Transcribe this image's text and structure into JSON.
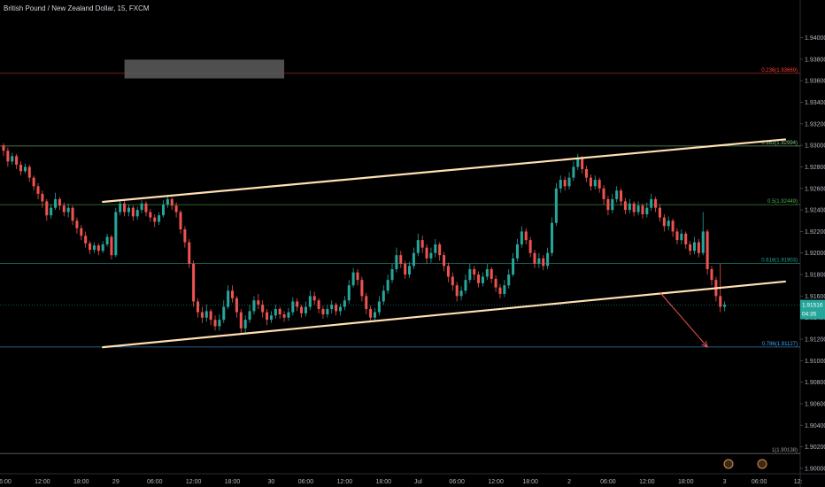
{
  "header": {
    "title": "British Pound / New Zealand Dollar, 15, FXCM"
  },
  "chart_data": {
    "type": "candlestick",
    "y_range": [
      1.8995,
      1.9435
    ],
    "y_ticks": [
      1.94,
      1.938,
      1.936,
      1.934,
      1.932,
      1.93,
      1.928,
      1.926,
      1.924,
      1.922,
      1.92,
      1.918,
      1.916,
      1.914,
      1.912,
      1.91,
      1.908,
      1.906,
      1.904,
      1.902,
      1.9
    ],
    "y_tick_labels": [
      "1.94000",
      "1.93800",
      "1.93600",
      "1.93400",
      "1.93200",
      "1.93000",
      "1.92800",
      "1.92600",
      "1.92400",
      "1.92200",
      "1.92000",
      "1.91800",
      "1.91600",
      "1.91400",
      "1.91200",
      "1.91000",
      "1.90800",
      "1.90600",
      "1.90400",
      "1.90200",
      "1.90000"
    ],
    "x_range": [
      0,
      181
    ],
    "x_ticks": [
      {
        "t": 0,
        "label": "06:00"
      },
      {
        "t": 9,
        "label": "12:00"
      },
      {
        "t": 18,
        "label": "18:00"
      },
      {
        "t": 26,
        "label": "29"
      },
      {
        "t": 35,
        "label": "06:00"
      },
      {
        "t": 44,
        "label": "12:00"
      },
      {
        "t": 53,
        "label": "18:00"
      },
      {
        "t": 62,
        "label": "30"
      },
      {
        "t": 70,
        "label": "06:00"
      },
      {
        "t": 79,
        "label": "12:00"
      },
      {
        "t": 88,
        "label": "18:00"
      },
      {
        "t": 96,
        "label": "Jul"
      },
      {
        "t": 105,
        "label": "06:00"
      },
      {
        "t": 114,
        "label": "12:00"
      },
      {
        "t": 122,
        "label": "18:00"
      },
      {
        "t": 131,
        "label": "2"
      },
      {
        "t": 140,
        "label": "06:00"
      },
      {
        "t": 149,
        "label": "12:00"
      },
      {
        "t": 158,
        "label": "18:00"
      },
      {
        "t": 167,
        "label": "3"
      },
      {
        "t": 175,
        "label": "06:00"
      },
      {
        "t": 184,
        "label": "12:"
      }
    ],
    "colors": {
      "up": "#26a69a",
      "down": "#ef5350",
      "channel": "#ffe0b2",
      "grid_fib": "#2e7d5b",
      "fib_top": "#c62828",
      "fib_786": "#1e6f8f",
      "price_tag": "#26a69a",
      "arrow": "#ef5350",
      "zone": "#5d5d5d"
    },
    "fib_levels": [
      {
        "ratio": "0.236",
        "label": "0.236(1.93669)",
        "price": 1.93669,
        "color": "#f44336"
      },
      {
        "ratio": "0.382",
        "label": "0.382(1.92994)",
        "price": 1.92994,
        "color": "#81c784"
      },
      {
        "ratio": "0.5",
        "label": "0.5(1.92449)",
        "price": 1.92449,
        "color": "#4caf50"
      },
      {
        "ratio": "0.618",
        "label": "0.618(1.91903)",
        "price": 1.91903,
        "color": "#26a69a"
      },
      {
        "ratio": "0.786",
        "label": "0.786(1.91127)",
        "price": 1.91127,
        "color": "#42a5f5"
      },
      {
        "ratio": "1",
        "label": "1(1.90138)",
        "price": 1.90138,
        "color": "#9e9e9e"
      }
    ],
    "last_price": {
      "price": 1.91516,
      "label": "1.91516",
      "countdown": "04:35"
    },
    "channel_upper": [
      {
        "t": 23,
        "price": 1.92475
      },
      {
        "t": 181,
        "price": 1.93055
      }
    ],
    "channel_lower": [
      {
        "t": 23,
        "price": 1.91125
      },
      {
        "t": 181,
        "price": 1.91735
      }
    ],
    "zone": {
      "t1": 28,
      "t2": 65,
      "p1": 1.93796,
      "p2": 1.93622
    },
    "arrow": {
      "from_t": 152,
      "from_p": 1.91635,
      "to_t": 163,
      "to_p": 1.91127
    },
    "candles": [
      [
        1.93,
        1.9295,
        1.9302,
        1.929
      ],
      [
        1.9295,
        1.9285,
        1.9298,
        1.928
      ],
      [
        1.9285,
        1.929,
        1.9293,
        1.9282
      ],
      [
        1.929,
        1.9282,
        1.9292,
        1.9278
      ],
      [
        1.9282,
        1.9276,
        1.9285,
        1.9272
      ],
      [
        1.9276,
        1.928,
        1.9283,
        1.9274
      ],
      [
        1.928,
        1.927,
        1.9282,
        1.9266
      ],
      [
        1.927,
        1.9262,
        1.9272,
        1.9258
      ],
      [
        1.9262,
        1.9255,
        1.9265,
        1.925
      ],
      [
        1.9255,
        1.9248,
        1.9258,
        1.9242
      ],
      [
        1.9248,
        1.9235,
        1.925,
        1.923
      ],
      [
        1.9235,
        1.9242,
        1.9245,
        1.9232
      ],
      [
        1.9242,
        1.925,
        1.9256,
        1.924
      ],
      [
        1.925,
        1.9244,
        1.9252,
        1.924
      ],
      [
        1.9244,
        1.9238,
        1.9247,
        1.9234
      ],
      [
        1.9238,
        1.9242,
        1.9246,
        1.9233
      ],
      [
        1.9242,
        1.923,
        1.9244,
        1.9226
      ],
      [
        1.923,
        1.9223,
        1.9233,
        1.9218
      ],
      [
        1.9223,
        1.9216,
        1.9226,
        1.9212
      ],
      [
        1.9216,
        1.9209,
        1.922,
        1.9205
      ],
      [
        1.9209,
        1.9203,
        1.9211,
        1.9199
      ],
      [
        1.9203,
        1.9207,
        1.921,
        1.92
      ],
      [
        1.9207,
        1.9202,
        1.9209,
        1.9198
      ],
      [
        1.9202,
        1.9208,
        1.9211,
        1.92
      ],
      [
        1.9208,
        1.9215,
        1.9218,
        1.9206
      ],
      [
        1.9215,
        1.9198,
        1.9217,
        1.9194
      ],
      [
        1.9198,
        1.9238,
        1.9242,
        1.9196
      ],
      [
        1.9238,
        1.9246,
        1.925,
        1.9235
      ],
      [
        1.9246,
        1.9238,
        1.9249,
        1.9234
      ],
      [
        1.9238,
        1.9242,
        1.9245,
        1.9234
      ],
      [
        1.9242,
        1.9234,
        1.9244,
        1.923
      ],
      [
        1.9234,
        1.924,
        1.9243,
        1.9231
      ],
      [
        1.924,
        1.9246,
        1.9249,
        1.9237
      ],
      [
        1.9246,
        1.9238,
        1.9248,
        1.9234
      ],
      [
        1.9238,
        1.9233,
        1.9241,
        1.9229
      ],
      [
        1.9233,
        1.9229,
        1.9236,
        1.9224
      ],
      [
        1.9229,
        1.9235,
        1.9238,
        1.9226
      ],
      [
        1.9235,
        1.9245,
        1.9249,
        1.9233
      ],
      [
        1.9245,
        1.925,
        1.9254,
        1.9242
      ],
      [
        1.925,
        1.9244,
        1.9252,
        1.924
      ],
      [
        1.9244,
        1.9238,
        1.9247,
        1.9233
      ],
      [
        1.9238,
        1.9222,
        1.924,
        1.9218
      ],
      [
        1.9222,
        1.921,
        1.9225,
        1.9205
      ],
      [
        1.921,
        1.919,
        1.9213,
        1.9186
      ],
      [
        1.919,
        1.9155,
        1.9193,
        1.915
      ],
      [
        1.9155,
        1.9145,
        1.9158,
        1.914
      ],
      [
        1.9145,
        1.914,
        1.915,
        1.9135
      ],
      [
        1.914,
        1.9146,
        1.9152,
        1.9136
      ],
      [
        1.9146,
        1.9138,
        1.9148,
        1.9133
      ],
      [
        1.9138,
        1.9132,
        1.9142,
        1.9128
      ],
      [
        1.9132,
        1.9138,
        1.9143,
        1.9128
      ],
      [
        1.9138,
        1.915,
        1.9156,
        1.9135
      ],
      [
        1.915,
        1.9165,
        1.917,
        1.9148
      ],
      [
        1.9165,
        1.9158,
        1.917,
        1.9154
      ],
      [
        1.9158,
        1.9145,
        1.916,
        1.914
      ],
      [
        1.9145,
        1.913,
        1.9148,
        1.9125
      ],
      [
        1.913,
        1.9138,
        1.9142,
        1.9126
      ],
      [
        1.9138,
        1.9146,
        1.9152,
        1.9135
      ],
      [
        1.9146,
        1.9156,
        1.916,
        1.9143
      ],
      [
        1.9156,
        1.9152,
        1.9162,
        1.9148
      ],
      [
        1.9152,
        1.9145,
        1.9156,
        1.914
      ],
      [
        1.9145,
        1.9138,
        1.9148,
        1.9133
      ],
      [
        1.9138,
        1.9142,
        1.9146,
        1.9135
      ],
      [
        1.9142,
        1.9148,
        1.9152,
        1.9139
      ],
      [
        1.9148,
        1.9143,
        1.915,
        1.9139
      ],
      [
        1.9143,
        1.914,
        1.9146,
        1.9136
      ],
      [
        1.914,
        1.9145,
        1.9149,
        1.9137
      ],
      [
        1.9145,
        1.9155,
        1.9159,
        1.9142
      ],
      [
        1.9155,
        1.915,
        1.9158,
        1.9146
      ],
      [
        1.915,
        1.9144,
        1.9152,
        1.914
      ],
      [
        1.9144,
        1.915,
        1.9155,
        1.9141
      ],
      [
        1.915,
        1.916,
        1.9165,
        1.9147
      ],
      [
        1.916,
        1.9156,
        1.9164,
        1.9152
      ],
      [
        1.9156,
        1.9148,
        1.9158,
        1.9144
      ],
      [
        1.9148,
        1.9143,
        1.9151,
        1.9139
      ],
      [
        1.9143,
        1.9148,
        1.9152,
        1.914
      ],
      [
        1.9148,
        1.9152,
        1.9156,
        1.9144
      ],
      [
        1.9152,
        1.9146,
        1.9154,
        1.9142
      ],
      [
        1.9146,
        1.915,
        1.9153,
        1.9142
      ],
      [
        1.915,
        1.9156,
        1.916,
        1.9147
      ],
      [
        1.9156,
        1.917,
        1.9175,
        1.9153
      ],
      [
        1.917,
        1.9182,
        1.9186,
        1.9168
      ],
      [
        1.9182,
        1.9175,
        1.9185,
        1.917
      ],
      [
        1.9175,
        1.916,
        1.9178,
        1.9155
      ],
      [
        1.916,
        1.9148,
        1.9163,
        1.9143
      ],
      [
        1.9148,
        1.914,
        1.9151,
        1.9136
      ],
      [
        1.914,
        1.9145,
        1.9149,
        1.9136
      ],
      [
        1.9145,
        1.9155,
        1.916,
        1.9142
      ],
      [
        1.9155,
        1.9165,
        1.917,
        1.9152
      ],
      [
        1.9165,
        1.9175,
        1.918,
        1.9162
      ],
      [
        1.9175,
        1.9185,
        1.919,
        1.9172
      ],
      [
        1.9185,
        1.9198,
        1.9205,
        1.9182
      ],
      [
        1.9198,
        1.919,
        1.9202,
        1.9186
      ],
      [
        1.919,
        1.918,
        1.9193,
        1.9176
      ],
      [
        1.918,
        1.9188,
        1.9192,
        1.9177
      ],
      [
        1.9188,
        1.92,
        1.9205,
        1.9185
      ],
      [
        1.92,
        1.9212,
        1.9218,
        1.9197
      ],
      [
        1.9212,
        1.9205,
        1.9216,
        1.92
      ],
      [
        1.9205,
        1.9195,
        1.9208,
        1.919
      ],
      [
        1.9195,
        1.92,
        1.9205,
        1.9191
      ],
      [
        1.92,
        1.9208,
        1.9213,
        1.9196
      ],
      [
        1.9208,
        1.9198,
        1.921,
        1.9193
      ],
      [
        1.9198,
        1.9188,
        1.9201,
        1.9183
      ],
      [
        1.9188,
        1.9178,
        1.9191,
        1.9173
      ],
      [
        1.9178,
        1.917,
        1.9182,
        1.9165
      ],
      [
        1.917,
        1.916,
        1.9173,
        1.9155
      ],
      [
        1.916,
        1.9165,
        1.9169,
        1.9156
      ],
      [
        1.9165,
        1.9175,
        1.918,
        1.9162
      ],
      [
        1.9175,
        1.9185,
        1.919,
        1.9172
      ],
      [
        1.9185,
        1.918,
        1.9188,
        1.9175
      ],
      [
        1.918,
        1.9172,
        1.9183,
        1.9168
      ],
      [
        1.9172,
        1.9178,
        1.9182,
        1.9169
      ],
      [
        1.9178,
        1.9185,
        1.919,
        1.9175
      ],
      [
        1.9185,
        1.9176,
        1.9187,
        1.9172
      ],
      [
        1.9176,
        1.9168,
        1.9179,
        1.9164
      ],
      [
        1.9168,
        1.9162,
        1.9171,
        1.9158
      ],
      [
        1.9162,
        1.917,
        1.9175,
        1.9159
      ],
      [
        1.917,
        1.918,
        1.9185,
        1.9167
      ],
      [
        1.918,
        1.9195,
        1.92,
        1.9178
      ],
      [
        1.9195,
        1.9208,
        1.9213,
        1.9192
      ],
      [
        1.9208,
        1.922,
        1.9225,
        1.9205
      ],
      [
        1.922,
        1.9212,
        1.9223,
        1.9208
      ],
      [
        1.9212,
        1.92,
        1.9215,
        1.9196
      ],
      [
        1.92,
        1.919,
        1.9203,
        1.9186
      ],
      [
        1.919,
        1.9195,
        1.92,
        1.9186
      ],
      [
        1.9195,
        1.9188,
        1.9198,
        1.9184
      ],
      [
        1.9188,
        1.92,
        1.9205,
        1.9185
      ],
      [
        1.92,
        1.9228,
        1.9233,
        1.9197
      ],
      [
        1.9228,
        1.926,
        1.9265,
        1.9225
      ],
      [
        1.926,
        1.9268,
        1.9272,
        1.9256
      ],
      [
        1.9268,
        1.9262,
        1.9271,
        1.9258
      ],
      [
        1.9262,
        1.927,
        1.9275,
        1.9259
      ],
      [
        1.927,
        1.928,
        1.9285,
        1.9267
      ],
      [
        1.928,
        1.9288,
        1.9292,
        1.9277
      ],
      [
        1.9288,
        1.9278,
        1.929,
        1.9274
      ],
      [
        1.9278,
        1.927,
        1.9281,
        1.9266
      ],
      [
        1.927,
        1.9262,
        1.9273,
        1.9258
      ],
      [
        1.9262,
        1.9268,
        1.9272,
        1.9259
      ],
      [
        1.9268,
        1.926,
        1.927,
        1.9256
      ],
      [
        1.926,
        1.925,
        1.9263,
        1.9245
      ],
      [
        1.925,
        1.924,
        1.9253,
        1.9235
      ],
      [
        1.924,
        1.925,
        1.9255,
        1.9237
      ],
      [
        1.925,
        1.9258,
        1.9262,
        1.9247
      ],
      [
        1.9258,
        1.9248,
        1.926,
        1.9244
      ],
      [
        1.9248,
        1.924,
        1.9251,
        1.9236
      ],
      [
        1.924,
        1.9246,
        1.925,
        1.9237
      ],
      [
        1.9246,
        1.9238,
        1.9248,
        1.9234
      ],
      [
        1.9238,
        1.9244,
        1.9248,
        1.9235
      ],
      [
        1.9244,
        1.9236,
        1.9246,
        1.9232
      ],
      [
        1.9236,
        1.9242,
        1.9247,
        1.9233
      ],
      [
        1.9242,
        1.925,
        1.9255,
        1.9239
      ],
      [
        1.925,
        1.9242,
        1.9252,
        1.9238
      ],
      [
        1.9242,
        1.9233,
        1.9245,
        1.9229
      ],
      [
        1.9233,
        1.9225,
        1.9236,
        1.922
      ],
      [
        1.9225,
        1.923,
        1.9234,
        1.9221
      ],
      [
        1.923,
        1.922,
        1.9232,
        1.9215
      ],
      [
        1.922,
        1.9212,
        1.9223,
        1.9208
      ],
      [
        1.9212,
        1.9218,
        1.9222,
        1.9208
      ],
      [
        1.9218,
        1.9208,
        1.922,
        1.9204
      ],
      [
        1.9208,
        1.9202,
        1.9211,
        1.9198
      ],
      [
        1.9202,
        1.921,
        1.9215,
        1.9199
      ],
      [
        1.921,
        1.92,
        1.9213,
        1.9196
      ],
      [
        1.92,
        1.922,
        1.9238,
        1.9198
      ],
      [
        1.922,
        1.9185,
        1.9222,
        1.918
      ],
      [
        1.9185,
        1.9175,
        1.9188,
        1.917
      ],
      [
        1.9175,
        1.916,
        1.9178,
        1.9155
      ],
      [
        1.916,
        1.915,
        1.919,
        1.9145
      ],
      [
        1.915,
        1.9152,
        1.9155,
        1.9146
      ]
    ]
  }
}
